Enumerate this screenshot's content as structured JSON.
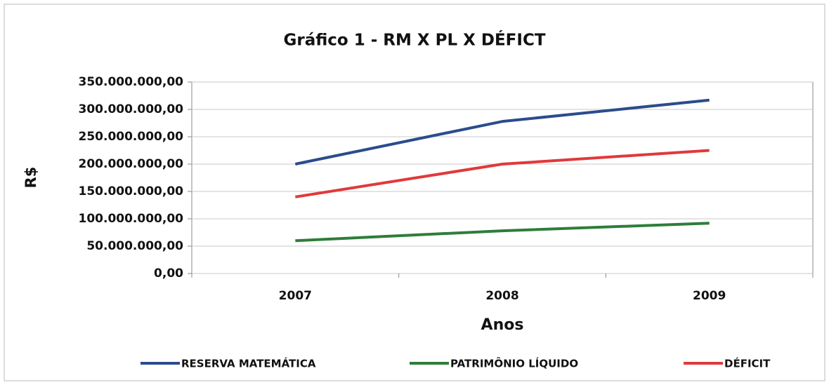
{
  "chart_data": {
    "type": "line",
    "title": "Gráfico 1 - RM X PL X DÉFICT",
    "y_label": "R$",
    "x_label": "Anos",
    "categories": [
      "2007",
      "2008",
      "2009"
    ],
    "series": [
      {
        "name": "RESERVA MATEMÁTICA",
        "color": "#2b4c8c",
        "values": [
          200000000,
          278000000,
          317000000
        ]
      },
      {
        "name": "PATRIMÔNIO LÍQUIDO",
        "color": "#2e7d3a",
        "values": [
          60000000,
          78000000,
          92000000
        ]
      },
      {
        "name": "DÉFICIT",
        "color": "#e0393b",
        "values": [
          140000000,
          200000000,
          225000000
        ]
      }
    ],
    "ylim": [
      0,
      350000000
    ],
    "yticks": [
      {
        "value": 0,
        "label": "0,00"
      },
      {
        "value": 50000000,
        "label": "50.000.000,00"
      },
      {
        "value": 100000000,
        "label": "100.000.000,00"
      },
      {
        "value": 150000000,
        "label": "150.000.000,00"
      },
      {
        "value": 200000000,
        "label": "200.000.000,00"
      },
      {
        "value": 250000000,
        "label": "250.000.000,00"
      },
      {
        "value": 300000000,
        "label": "300.000.000,00"
      },
      {
        "value": 350000000,
        "label": "350.000.000,00"
      }
    ],
    "grid": true,
    "legend": "bottom"
  }
}
